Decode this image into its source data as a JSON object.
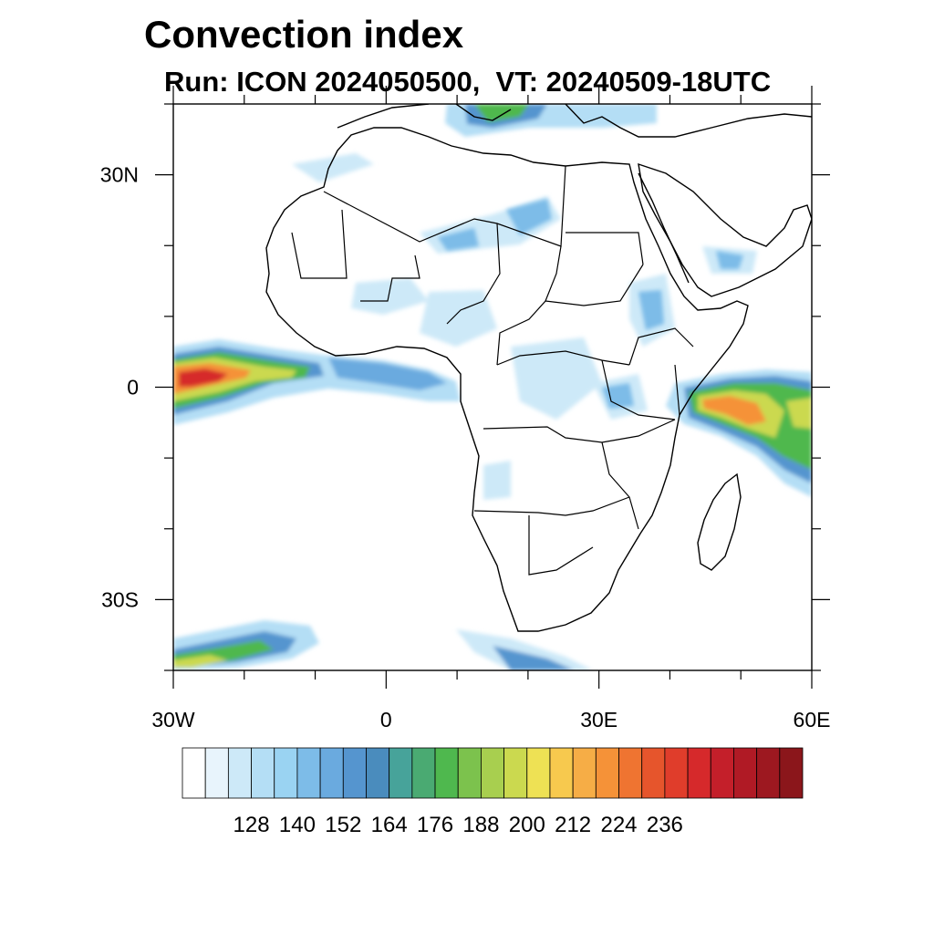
{
  "header": {
    "title": "Convection index",
    "subtitle": "Run: ICON 2024050500,  VT: 20240509-18UTC"
  },
  "map": {
    "lon_range": [
      -30,
      60
    ],
    "lat_range": [
      -40,
      40
    ],
    "lat_ticks": [
      {
        "value": 30,
        "label": "30N"
      },
      {
        "value": 0,
        "label": "0"
      },
      {
        "value": -30,
        "label": "30S"
      }
    ],
    "lon_ticks": [
      {
        "value": -30,
        "label": "30W"
      },
      {
        "value": 0,
        "label": "0"
      },
      {
        "value": 30,
        "label": "30E"
      },
      {
        "value": 60,
        "label": "60E"
      }
    ],
    "minor_lat_ticks": [
      40,
      20,
      10,
      -10,
      -20,
      -40
    ],
    "minor_lon_ticks": [
      -20,
      -10,
      10,
      20,
      40,
      50
    ]
  },
  "colorbar": {
    "labels": [
      "128",
      "140",
      "152",
      "164",
      "176",
      "188",
      "200",
      "212",
      "224",
      "236"
    ],
    "label_positions": [
      2,
      4,
      6,
      8,
      10,
      12,
      14,
      16,
      18,
      20
    ],
    "colors": [
      "#ffffff",
      "#e8f4fc",
      "#cde9f8",
      "#b4def5",
      "#9ad3f2",
      "#7dbce8",
      "#6aaadf",
      "#5595cf",
      "#4a8cbd",
      "#47a39a",
      "#4aaa72",
      "#4fb84e",
      "#7cc24d",
      "#a8cf4f",
      "#cbd94f",
      "#eee154",
      "#f7c94e",
      "#f6ad46",
      "#f59238",
      "#ef7431",
      "#e6552c",
      "#e03d2b",
      "#d6292b",
      "#c41f2a",
      "#b01a25",
      "#9d1820",
      "#8b161b"
    ]
  }
}
